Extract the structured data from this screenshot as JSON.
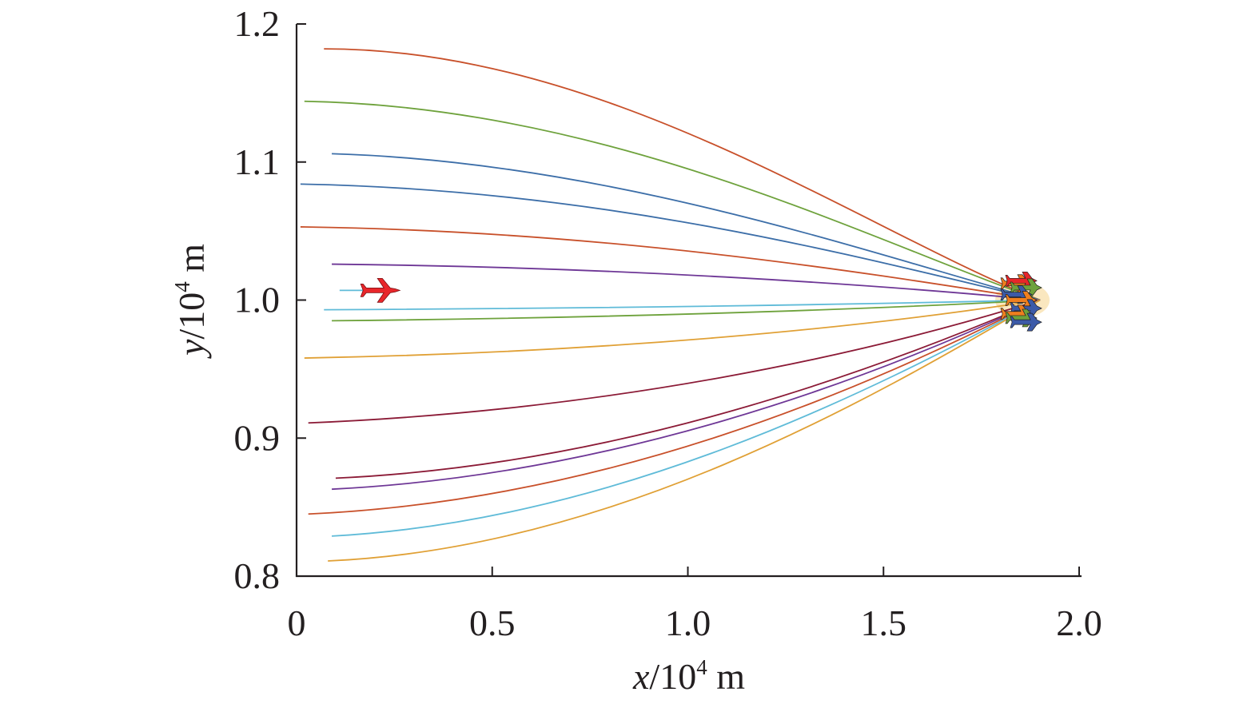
{
  "chart_data": {
    "type": "line",
    "title": "",
    "xlabel": {
      "var": "x",
      "unit": "/10",
      "exp": "4",
      "suffix": " m"
    },
    "ylabel": {
      "var": "y",
      "unit": "/10",
      "exp": "4",
      "suffix": " m"
    },
    "xlim": [
      0,
      2.0
    ],
    "ylim": [
      0.8,
      1.2
    ],
    "x_ticks": [
      {
        "value": 0,
        "label": "0"
      },
      {
        "value": 0.5,
        "label": "0.5"
      },
      {
        "value": 1.0,
        "label": "1.0"
      },
      {
        "value": 1.5,
        "label": "1.5"
      },
      {
        "value": 2.0,
        "label": "2.0"
      }
    ],
    "y_ticks": [
      {
        "value": 0.8,
        "label": "0.8"
      },
      {
        "value": 0.9,
        "label": "0.9"
      },
      {
        "value": 1.0,
        "label": "1.0"
      },
      {
        "value": 1.1,
        "label": "1.1"
      },
      {
        "value": 1.2,
        "label": "1.2"
      }
    ],
    "target": {
      "x": 1.9,
      "y": 1.0
    },
    "red_aircraft": {
      "x": 0.215,
      "y": 1.007,
      "color": "#e8262a"
    },
    "series": [
      {
        "name": "traj-1",
        "color": "#c8502a",
        "start": [
          0.07,
          1.182
        ],
        "c1": [
          0.8,
          1.182
        ],
        "c2": [
          1.45,
          1.05
        ]
      },
      {
        "name": "traj-2",
        "color": "#6ea23c",
        "start": [
          0.02,
          1.144
        ],
        "c1": [
          0.8,
          1.14
        ],
        "c2": [
          1.45,
          1.045
        ]
      },
      {
        "name": "traj-3",
        "color": "#3c6ea8",
        "start": [
          0.09,
          1.106
        ],
        "c1": [
          0.8,
          1.1
        ],
        "c2": [
          1.45,
          1.035
        ]
      },
      {
        "name": "traj-4",
        "color": "#3c6ea8",
        "start": [
          0.01,
          1.084
        ],
        "c1": [
          0.8,
          1.08
        ],
        "c2": [
          1.45,
          1.03
        ]
      },
      {
        "name": "traj-5",
        "color": "#c8502a",
        "start": [
          0.01,
          1.053
        ],
        "c1": [
          0.8,
          1.05
        ],
        "c2": [
          1.45,
          1.02
        ]
      },
      {
        "name": "traj-6",
        "color": "#6e3796",
        "start": [
          0.09,
          1.026
        ],
        "c1": [
          0.8,
          1.024
        ],
        "c2": [
          1.45,
          1.012
        ]
      },
      {
        "name": "traj-7",
        "color": "#5fbbd8",
        "start": [
          0.11,
          1.007
        ],
        "c1": [
          0.16,
          1.007
        ],
        "c2": [
          0.19,
          1.007
        ]
      },
      {
        "name": "traj-8",
        "color": "#5fbbd8",
        "start": [
          0.07,
          0.993
        ],
        "c1": [
          0.8,
          0.994
        ],
        "c2": [
          1.45,
          0.997
        ]
      },
      {
        "name": "traj-9",
        "color": "#6ea23c",
        "start": [
          0.09,
          0.985
        ],
        "c1": [
          0.8,
          0.987
        ],
        "c2": [
          1.45,
          0.993
        ]
      },
      {
        "name": "traj-10",
        "color": "#e0a035",
        "start": [
          0.02,
          0.958
        ],
        "c1": [
          0.8,
          0.962
        ],
        "c2": [
          1.45,
          0.98
        ]
      },
      {
        "name": "traj-11",
        "color": "#8b1a36",
        "start": [
          0.03,
          0.911
        ],
        "c1": [
          0.8,
          0.92
        ],
        "c2": [
          1.45,
          0.96
        ]
      },
      {
        "name": "traj-12",
        "color": "#8b1a36",
        "start": [
          0.1,
          0.871
        ],
        "c1": [
          0.8,
          0.88
        ],
        "c2": [
          1.45,
          0.945
        ]
      },
      {
        "name": "traj-13",
        "color": "#6e3796",
        "start": [
          0.09,
          0.863
        ],
        "c1": [
          0.8,
          0.873
        ],
        "c2": [
          1.45,
          0.94
        ]
      },
      {
        "name": "traj-14",
        "color": "#c8502a",
        "start": [
          0.03,
          0.845
        ],
        "c1": [
          0.8,
          0.855
        ],
        "c2": [
          1.45,
          0.935
        ]
      },
      {
        "name": "traj-15",
        "color": "#5fbbd8",
        "start": [
          0.09,
          0.829
        ],
        "c1": [
          0.8,
          0.84
        ],
        "c2": [
          1.45,
          0.93
        ]
      },
      {
        "name": "traj-16",
        "color": "#e0a035",
        "start": [
          0.08,
          0.811
        ],
        "c1": [
          0.8,
          0.82
        ],
        "c2": [
          1.45,
          0.925
        ]
      }
    ],
    "missile_cluster": [
      {
        "color": "#f07f1e",
        "dy": 0.012
      },
      {
        "color": "#e8262a",
        "dy": 0.014
      },
      {
        "color": "#6ea23c",
        "dy": 0.009
      },
      {
        "color": "#3c5aa8",
        "dy": 0.004
      },
      {
        "color": "#f07f1e",
        "dy": 0.0
      },
      {
        "color": "#3c5aa8",
        "dy": -0.006
      },
      {
        "color": "#f07f1e",
        "dy": -0.01
      },
      {
        "color": "#6ea23c",
        "dy": -0.013
      },
      {
        "color": "#3c5aa8",
        "dy": -0.016
      }
    ]
  }
}
